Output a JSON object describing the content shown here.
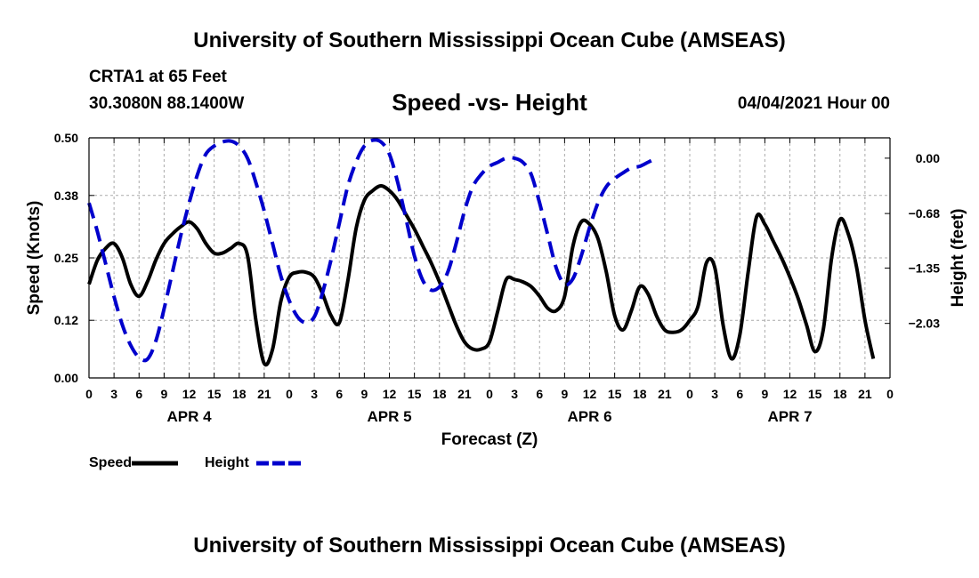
{
  "page": {
    "top_title": "University of Southern Mississippi Ocean Cube (AMSEAS)",
    "bottom_title": "University of Southern Mississippi Ocean Cube (AMSEAS)",
    "station": "CRTA1 at 65 Feet",
    "coords": "30.3080N  88.1400W",
    "subtitle": "Speed -vs- Height",
    "datetime": "04/04/2021 Hour 00"
  },
  "chart_data": {
    "type": "line",
    "title": "Speed -vs- Height",
    "xlabel": "Forecast (Z)",
    "ylabel_left": "Speed (Knots)",
    "ylabel_right": "Height (feet)",
    "x_range": [
      0,
      96
    ],
    "ylim_left": [
      0,
      0.5
    ],
    "ylim_right": [
      -2.7,
      0.25
    ],
    "left_ticks": [
      0.0,
      0.12,
      0.25,
      0.38,
      0.5
    ],
    "left_tick_labels": [
      "0.00",
      "0.12",
      "0.25",
      "0.38",
      "0.50"
    ],
    "right_ticks": [
      0.0,
      -0.68,
      -1.35,
      -2.03
    ],
    "right_tick_labels": [
      "0.00",
      "−0.68",
      "−1.35",
      "−2.03"
    ],
    "x_ticks": [
      0,
      3,
      6,
      9,
      12,
      15,
      18,
      21,
      24,
      27,
      30,
      33,
      36,
      39,
      42,
      45,
      48,
      51,
      54,
      57,
      60,
      63,
      66,
      69,
      72,
      75,
      78,
      81,
      84,
      87,
      90,
      93,
      96
    ],
    "x_tick_labels": [
      "0",
      "3",
      "6",
      "9",
      "12",
      "15",
      "18",
      "21",
      "0",
      "3",
      "6",
      "9",
      "12",
      "15",
      "18",
      "21",
      "0",
      "3",
      "6",
      "9",
      "12",
      "15",
      "18",
      "21",
      "0",
      "3",
      "6",
      "9",
      "12",
      "15",
      "18",
      "21",
      "0"
    ],
    "day_labels": [
      {
        "x": 12,
        "label": "APR 4"
      },
      {
        "x": 36,
        "label": "APR 5"
      },
      {
        "x": 60,
        "label": "APR 6"
      },
      {
        "x": 84,
        "label": "APR 7"
      }
    ],
    "grid": true,
    "legend_position": "bottom-left",
    "series": [
      {
        "name": "Speed",
        "axis": "left",
        "color": "#000000",
        "style": "solid",
        "points": [
          [
            0,
            0.195
          ],
          [
            1,
            0.245
          ],
          [
            2,
            0.27
          ],
          [
            3,
            0.28
          ],
          [
            4,
            0.25
          ],
          [
            5,
            0.195
          ],
          [
            6,
            0.17
          ],
          [
            7,
            0.2
          ],
          [
            8,
            0.245
          ],
          [
            9,
            0.28
          ],
          [
            10,
            0.3
          ],
          [
            11,
            0.315
          ],
          [
            12,
            0.325
          ],
          [
            13,
            0.31
          ],
          [
            14,
            0.28
          ],
          [
            15,
            0.26
          ],
          [
            16,
            0.26
          ],
          [
            17,
            0.27
          ],
          [
            18,
            0.28
          ],
          [
            19,
            0.255
          ],
          [
            20,
            0.12
          ],
          [
            21,
            0.03
          ],
          [
            22,
            0.06
          ],
          [
            23,
            0.16
          ],
          [
            24,
            0.21
          ],
          [
            25,
            0.22
          ],
          [
            26,
            0.22
          ],
          [
            27,
            0.21
          ],
          [
            28,
            0.175
          ],
          [
            29,
            0.13
          ],
          [
            30,
            0.115
          ],
          [
            31,
            0.2
          ],
          [
            32,
            0.31
          ],
          [
            33,
            0.37
          ],
          [
            34,
            0.39
          ],
          [
            35,
            0.4
          ],
          [
            36,
            0.39
          ],
          [
            37,
            0.37
          ],
          [
            38,
            0.34
          ],
          [
            39,
            0.31
          ],
          [
            40,
            0.275
          ],
          [
            41,
            0.24
          ],
          [
            42,
            0.2
          ],
          [
            43,
            0.155
          ],
          [
            44,
            0.11
          ],
          [
            45,
            0.075
          ],
          [
            46,
            0.06
          ],
          [
            47,
            0.06
          ],
          [
            48,
            0.075
          ],
          [
            49,
            0.14
          ],
          [
            50,
            0.205
          ],
          [
            51,
            0.205
          ],
          [
            52,
            0.2
          ],
          [
            53,
            0.19
          ],
          [
            54,
            0.17
          ],
          [
            55,
            0.145
          ],
          [
            56,
            0.14
          ],
          [
            57,
            0.17
          ],
          [
            58,
            0.275
          ],
          [
            59,
            0.325
          ],
          [
            60,
            0.32
          ],
          [
            61,
            0.29
          ],
          [
            62,
            0.22
          ],
          [
            63,
            0.13
          ],
          [
            64,
            0.1
          ],
          [
            65,
            0.14
          ],
          [
            66,
            0.19
          ],
          [
            67,
            0.175
          ],
          [
            68,
            0.13
          ],
          [
            69,
            0.1
          ],
          [
            70,
            0.095
          ],
          [
            71,
            0.1
          ],
          [
            72,
            0.12
          ],
          [
            73,
            0.15
          ],
          [
            74,
            0.24
          ],
          [
            75,
            0.23
          ],
          [
            76,
            0.11
          ],
          [
            77,
            0.04
          ],
          [
            78,
            0.09
          ],
          [
            79,
            0.22
          ],
          [
            80,
            0.335
          ],
          [
            81,
            0.32
          ],
          [
            82,
            0.285
          ],
          [
            83,
            0.25
          ],
          [
            84,
            0.21
          ],
          [
            85,
            0.165
          ],
          [
            86,
            0.11
          ],
          [
            87,
            0.055
          ],
          [
            88,
            0.1
          ],
          [
            89,
            0.25
          ],
          [
            90,
            0.33
          ],
          [
            91,
            0.3
          ],
          [
            92,
            0.23
          ],
          [
            93,
            0.12
          ],
          [
            94,
            0.04
          ]
        ]
      },
      {
        "name": "Height",
        "axis": "right",
        "color": "#0000CC",
        "style": "dashed",
        "points": [
          [
            0,
            -0.55
          ],
          [
            1,
            -0.9
          ],
          [
            2,
            -1.3
          ],
          [
            3,
            -1.7
          ],
          [
            4,
            -2.05
          ],
          [
            5,
            -2.3
          ],
          [
            6,
            -2.45
          ],
          [
            7,
            -2.47
          ],
          [
            8,
            -2.25
          ],
          [
            9,
            -1.85
          ],
          [
            10,
            -1.4
          ],
          [
            11,
            -0.95
          ],
          [
            12,
            -0.55
          ],
          [
            13,
            -0.2
          ],
          [
            14,
            0.05
          ],
          [
            15,
            0.15
          ],
          [
            16,
            0.2
          ],
          [
            17,
            0.21
          ],
          [
            18,
            0.15
          ],
          [
            19,
            0.0
          ],
          [
            20,
            -0.3
          ],
          [
            21,
            -0.65
          ],
          [
            22,
            -1.05
          ],
          [
            23,
            -1.45
          ],
          [
            24,
            -1.75
          ],
          [
            25,
            -1.95
          ],
          [
            26,
            -2.02
          ],
          [
            27,
            -1.95
          ],
          [
            28,
            -1.65
          ],
          [
            29,
            -1.25
          ],
          [
            30,
            -0.8
          ],
          [
            31,
            -0.35
          ],
          [
            32,
            -0.05
          ],
          [
            33,
            0.15
          ],
          [
            34,
            0.22
          ],
          [
            35,
            0.2
          ],
          [
            36,
            0.05
          ],
          [
            37,
            -0.3
          ],
          [
            38,
            -0.75
          ],
          [
            39,
            -1.2
          ],
          [
            40,
            -1.5
          ],
          [
            41,
            -1.62
          ],
          [
            42,
            -1.58
          ],
          [
            43,
            -1.4
          ],
          [
            44,
            -1.05
          ],
          [
            45,
            -0.65
          ],
          [
            46,
            -0.35
          ],
          [
            47,
            -0.2
          ],
          [
            48,
            -0.1
          ],
          [
            49,
            -0.05
          ],
          [
            50,
            0.0
          ],
          [
            51,
            0.0
          ],
          [
            52,
            -0.05
          ],
          [
            53,
            -0.2
          ],
          [
            54,
            -0.55
          ],
          [
            55,
            -0.95
          ],
          [
            56,
            -1.35
          ],
          [
            57,
            -1.55
          ],
          [
            58,
            -1.48
          ],
          [
            59,
            -1.2
          ],
          [
            60,
            -0.85
          ],
          [
            61,
            -0.55
          ],
          [
            62,
            -0.35
          ],
          [
            63,
            -0.25
          ],
          [
            64,
            -0.18
          ],
          [
            65,
            -0.12
          ],
          [
            66,
            -0.1
          ],
          [
            67,
            -0.05
          ],
          [
            68,
            0.0
          ]
        ]
      }
    ]
  }
}
